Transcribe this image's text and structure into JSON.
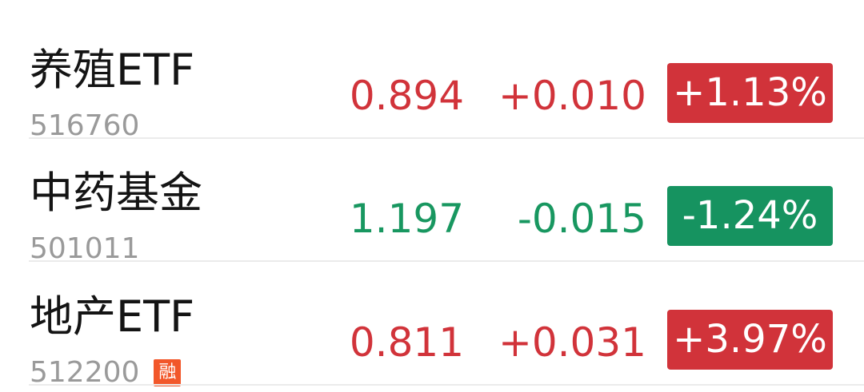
{
  "colors": {
    "up": "#d1333a",
    "down": "#169360",
    "margin_tag": "#f2572a"
  },
  "funds": [
    {
      "name": "养殖ETF",
      "code": "516760",
      "price": "0.894",
      "change": "+0.010",
      "change_pct": "+1.13%",
      "direction": "up"
    },
    {
      "name": "中药基金",
      "code": "501011",
      "price": "1.197",
      "change": "-0.015",
      "change_pct": "-1.24%",
      "direction": "down"
    },
    {
      "name": "地产ETF",
      "code": "512200",
      "tag": "融",
      "price": "0.811",
      "change": "+0.031",
      "change_pct": "+3.97%",
      "direction": "up"
    }
  ]
}
